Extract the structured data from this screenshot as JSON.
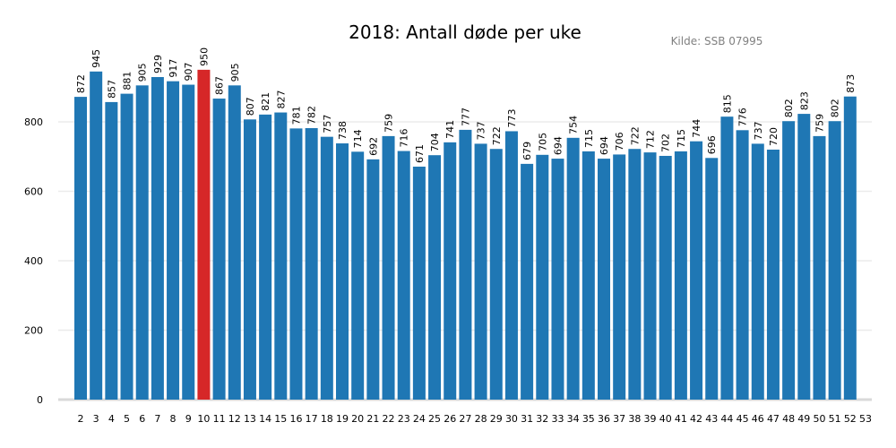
{
  "chart_data": {
    "type": "bar",
    "title": "2018: Antall døde per uke",
    "source_note": "Kilde: SSB 07995",
    "xlabel": "",
    "ylabel": "",
    "categories": [
      2,
      3,
      4,
      5,
      6,
      7,
      8,
      9,
      10,
      11,
      12,
      13,
      14,
      15,
      16,
      17,
      18,
      19,
      20,
      21,
      22,
      23,
      24,
      25,
      26,
      27,
      28,
      29,
      30,
      31,
      32,
      33,
      34,
      35,
      36,
      37,
      38,
      39,
      40,
      41,
      42,
      43,
      44,
      45,
      46,
      47,
      48,
      49,
      50,
      51,
      52
    ],
    "x_ticks": [
      2,
      3,
      4,
      5,
      6,
      7,
      8,
      9,
      10,
      11,
      12,
      13,
      14,
      15,
      16,
      17,
      18,
      19,
      20,
      21,
      22,
      23,
      24,
      25,
      26,
      27,
      28,
      29,
      30,
      31,
      32,
      33,
      34,
      35,
      36,
      37,
      38,
      39,
      40,
      41,
      42,
      43,
      44,
      45,
      46,
      47,
      48,
      49,
      50,
      51,
      52,
      53
    ],
    "values": [
      872,
      945,
      857,
      881,
      905,
      929,
      917,
      907,
      950,
      867,
      905,
      807,
      821,
      827,
      781,
      782,
      757,
      738,
      714,
      692,
      759,
      716,
      671,
      704,
      741,
      777,
      737,
      722,
      773,
      679,
      705,
      694,
      754,
      715,
      694,
      706,
      722,
      712,
      702,
      715,
      744,
      696,
      815,
      776,
      737,
      720,
      802,
      823,
      759,
      802,
      873
    ],
    "highlight_category": 10,
    "y_ticks": [
      0,
      200,
      400,
      600,
      800
    ],
    "ylim": [
      0,
      950
    ],
    "grid": "horizontal",
    "colors": {
      "bar": "#1f77b4",
      "highlight": "#d62728",
      "grid": "#ebebeb",
      "axis": "#d9d9d9"
    }
  }
}
